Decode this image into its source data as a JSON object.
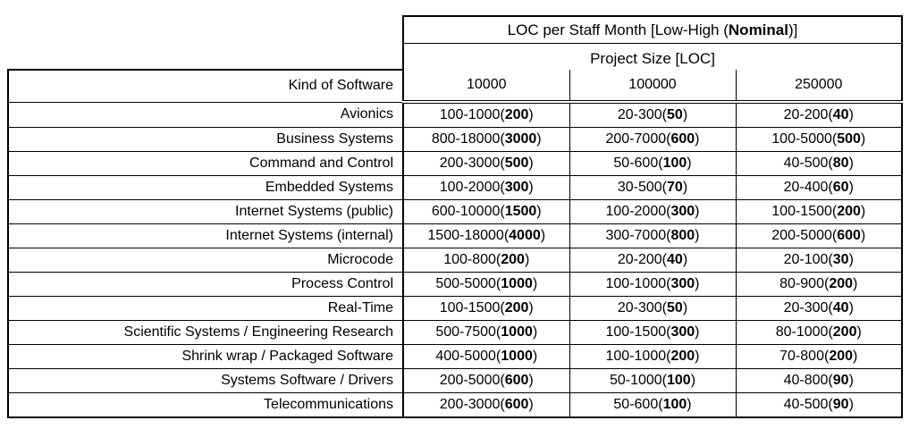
{
  "page": {
    "background_color": "#ffffff",
    "text_color": "#000000",
    "border_color": "#000000"
  },
  "table": {
    "title": {
      "pre": "LOC per Staff Month [Low-High (",
      "bold": "Nominal",
      "post": ")]"
    },
    "subtitle": "Project Size [LOC]",
    "kind_header": "Kind of Software",
    "size_headers": [
      "10000",
      "100000",
      "250000"
    ],
    "rows": [
      {
        "kind": "Avionics",
        "cells": [
          {
            "range": "100-1000",
            "nominal": "200"
          },
          {
            "range": "20-300",
            "nominal": "50"
          },
          {
            "range": "20-200",
            "nominal": "40"
          }
        ]
      },
      {
        "kind": "Business Systems",
        "cells": [
          {
            "range": "800-18000",
            "nominal": "3000"
          },
          {
            "range": "200-7000",
            "nominal": "600"
          },
          {
            "range": "100-5000",
            "nominal": "500"
          }
        ]
      },
      {
        "kind": "Command and Control",
        "cells": [
          {
            "range": "200-3000",
            "nominal": "500"
          },
          {
            "range": "50-600",
            "nominal": "100"
          },
          {
            "range": "40-500",
            "nominal": "80"
          }
        ]
      },
      {
        "kind": "Embedded Systems",
        "cells": [
          {
            "range": "100-2000",
            "nominal": "300"
          },
          {
            "range": "30-500",
            "nominal": "70"
          },
          {
            "range": "20-400",
            "nominal": "60"
          }
        ]
      },
      {
        "kind": "Internet Systems (public)",
        "cells": [
          {
            "range": "600-10000",
            "nominal": "1500"
          },
          {
            "range": "100-2000",
            "nominal": "300"
          },
          {
            "range": "100-1500",
            "nominal": "200"
          }
        ]
      },
      {
        "kind": "Internet Systems (internal)",
        "cells": [
          {
            "range": "1500-18000",
            "nominal": "4000"
          },
          {
            "range": "300-7000",
            "nominal": "800"
          },
          {
            "range": "200-5000",
            "nominal": "600"
          }
        ]
      },
      {
        "kind": "Microcode",
        "cells": [
          {
            "range": "100-800",
            "nominal": "200"
          },
          {
            "range": "20-200",
            "nominal": "40"
          },
          {
            "range": "20-100",
            "nominal": "30"
          }
        ]
      },
      {
        "kind": "Process Control",
        "cells": [
          {
            "range": "500-5000",
            "nominal": "1000"
          },
          {
            "range": "100-1000",
            "nominal": "300"
          },
          {
            "range": "80-900",
            "nominal": "200"
          }
        ]
      },
      {
        "kind": "Real-Time",
        "cells": [
          {
            "range": "100-1500",
            "nominal": "200"
          },
          {
            "range": "20-300",
            "nominal": "50"
          },
          {
            "range": "20-300",
            "nominal": "40"
          }
        ]
      },
      {
        "kind": "Scientific Systems / Engineering Research",
        "cells": [
          {
            "range": "500-7500",
            "nominal": "1000"
          },
          {
            "range": "100-1500",
            "nominal": "300"
          },
          {
            "range": "80-1000",
            "nominal": "200"
          }
        ]
      },
      {
        "kind": "Shrink wrap / Packaged Software",
        "cells": [
          {
            "range": "400-5000",
            "nominal": "1000"
          },
          {
            "range": "100-1000",
            "nominal": "200"
          },
          {
            "range": "70-800",
            "nominal": "200"
          }
        ]
      },
      {
        "kind": "Systems Software / Drivers",
        "cells": [
          {
            "range": "200-5000",
            "nominal": "600"
          },
          {
            "range": "50-1000",
            "nominal": "100"
          },
          {
            "range": "40-800",
            "nominal": "90"
          }
        ]
      },
      {
        "kind": "Telecommunications",
        "cells": [
          {
            "range": "200-3000",
            "nominal": "600"
          },
          {
            "range": "50-600",
            "nominal": "100"
          },
          {
            "range": "40-500",
            "nominal": "90"
          }
        ]
      }
    ]
  }
}
